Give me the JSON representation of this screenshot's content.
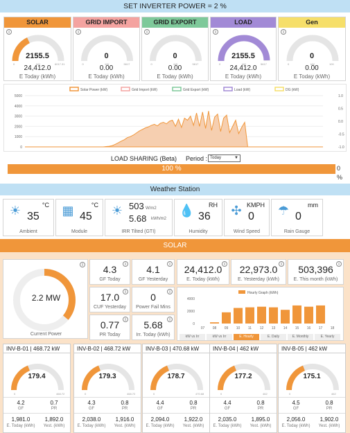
{
  "header": {
    "title": "SET INVERTER POWER = 2 %"
  },
  "gauges": [
    {
      "label": "SOLAR",
      "color": "#f0963a",
      "value": "2155.5",
      "unit": "kW",
      "min": "0",
      "max": "6017.31",
      "today": "24,412.0",
      "sub": "E Today (kWh)",
      "fill": 0.36
    },
    {
      "label": "GRID IMPORT",
      "color": "#f4a3a0",
      "value": "0",
      "unit": "kW",
      "min": "0",
      "max": "5617",
      "today": "0.00",
      "sub": "E Today (kWh)",
      "fill": 0
    },
    {
      "label": "GRID EXPORT",
      "color": "#7ec99a",
      "value": "0",
      "unit": "kW",
      "min": "0",
      "max": "5617",
      "today": "0.00",
      "sub": "E Today (kWh)",
      "fill": 0
    },
    {
      "label": "LOAD",
      "color": "#a28ad6",
      "value": "2155.5",
      "unit": "kW",
      "min": "0",
      "max": "5617",
      "today": "24,412.0",
      "sub": "E Today (kWh)",
      "fill": 0.99
    },
    {
      "label": "Gen",
      "color": "#f6df6a",
      "value": "0",
      "unit": "kW",
      "min": "0",
      "max": "100",
      "today": "0.00",
      "sub": "E Today (kWh)",
      "fill": 0
    }
  ],
  "chart_data": {
    "type": "area",
    "legend": [
      "Solar Power (kW)",
      "Grid Import (kW)",
      "Grid Export (kW)",
      "Load (kW)",
      "DG (kW)"
    ],
    "legend_colors": [
      "#f0963a",
      "#f4a3a0",
      "#7ec99a",
      "#a28ad6",
      "#f6df6a"
    ],
    "y_left_ticks": [
      "5000",
      "4000",
      "3000",
      "2000",
      "1000",
      "0"
    ],
    "y_right_ticks": [
      "1.0",
      "0.5",
      "0.0",
      "-0.5",
      "-1.0"
    ],
    "ylim": [
      0,
      5000
    ],
    "series": [
      {
        "name": "Solar Power (kW)",
        "values": [
          0,
          0,
          0,
          0,
          0,
          0,
          0,
          0,
          0,
          0,
          0,
          0,
          0,
          0,
          0,
          0,
          0,
          0,
          0,
          0,
          0,
          0,
          0,
          0,
          0,
          0,
          0,
          30,
          60,
          120,
          250,
          400,
          560,
          700,
          900,
          1000,
          1150,
          1350,
          1550,
          1700,
          1850,
          1950,
          2100,
          2200,
          2050,
          2300,
          2400,
          2250,
          2500,
          2600,
          2000,
          2700,
          1900,
          2800,
          2600,
          3000,
          2100,
          3300,
          2000,
          3400,
          1800,
          3500,
          1600,
          2900,
          3200,
          1500,
          2800,
          3100,
          1400,
          2000,
          2600,
          1300,
          1900,
          2400,
          0,
          0,
          0,
          0,
          0,
          0,
          0,
          0,
          0,
          0,
          0,
          0,
          0,
          0,
          0,
          0,
          0,
          0,
          0,
          0,
          0,
          0,
          0,
          0,
          0,
          0
        ]
      }
    ]
  },
  "load_sharing": {
    "title": "LOAD SHARING (Beta)",
    "period_label": "Period :",
    "period_value": "Today",
    "percent": "100 %",
    "right0": "0",
    "right_pct": "%"
  },
  "weather": {
    "title": "Weather Station",
    "items": [
      {
        "value": "35",
        "unit": "°C",
        "label": "Ambient",
        "icon": "sun-thermometer-icon"
      },
      {
        "value": "45",
        "unit": "°C",
        "label": "Module",
        "icon": "solar-panel-icon"
      },
      {
        "value": "503",
        "unit": "W/m2",
        "value2": "5.68",
        "unit2": "kWh/m2",
        "label": "IRR Tilted (GTI)",
        "icon": "sun-cloud-icon"
      },
      {
        "value": "36",
        "unit": "RH",
        "label": "Humidity",
        "icon": "humidity-drop-icon"
      },
      {
        "value": "0",
        "unit": "KMPH",
        "label": "Wind Speed",
        "icon": "wind-turbine-icon"
      },
      {
        "value": "0",
        "unit": "mm",
        "label": "Rain Gauge",
        "icon": "rain-gauge-icon"
      }
    ]
  },
  "solar": {
    "title": "SOLAR",
    "current_power": "2.2 MW",
    "current_label": "Current Power",
    "current_fill": 0.36,
    "kpis": [
      {
        "value": "4.3",
        "label": "GF Today"
      },
      {
        "value": "4.1",
        "label": "GF Yesterday"
      },
      {
        "value": "24,412.0",
        "label": "E. Today (kWh)"
      },
      {
        "value": "22,973.0",
        "label": "E. Yesterday (kWh)"
      },
      {
        "value": "503,396",
        "label": "E. This month (kWh)"
      },
      {
        "value": "17.0",
        "label": "CUF Yesterday"
      },
      {
        "value": "0",
        "label": "Power Fail Mins"
      },
      {
        "value": "0.77",
        "label": "PR Today"
      },
      {
        "value": "5.68",
        "label": "Irr. Today (kWh)"
      }
    ],
    "hourly": {
      "title": "Hourly Graph (kWh)",
      "y_ticks": [
        "4000",
        "2000",
        "0"
      ],
      "categories": [
        "07",
        "08",
        "09",
        "10",
        "11",
        "12",
        "13",
        "14",
        "15",
        "16",
        "17",
        "18"
      ],
      "values": [
        0,
        200,
        1800,
        2500,
        2600,
        2700,
        2600,
        2200,
        2900,
        2700,
        2900,
        0
      ],
      "tabs": [
        "kW vs Irr",
        "kW vs Irr",
        "E. Hourly",
        "E. Daily",
        "E. Monthly",
        "E. Yearly"
      ]
    }
  },
  "inverters": [
    {
      "title": "INV-B-01 | 468.72 kW",
      "value": "179.4",
      "max": "468.72",
      "gf": "4.2",
      "pr": "0.7",
      "e_today": "1,981.0",
      "e_yest": "1,892.0",
      "fill": 0.38
    },
    {
      "title": "INV-B-02 | 468.72 kW",
      "value": "179.3",
      "max": "468.72",
      "gf": "4.3",
      "pr": "0.8",
      "e_today": "2,038.0",
      "e_yest": "1,916.0",
      "fill": 0.38
    },
    {
      "title": "INV-B-03 | 470.68 kW",
      "value": "178.7",
      "max": "470.68",
      "gf": "4.4",
      "pr": "0.8",
      "e_today": "2,094.0",
      "e_yest": "1,922.0",
      "fill": 0.38
    },
    {
      "title": "INV-B-04 | 462 kW",
      "value": "177.2",
      "max": "462",
      "gf": "4.4",
      "pr": "0.8",
      "e_today": "2,035.0",
      "e_yest": "1,895.0",
      "fill": 0.38
    },
    {
      "title": "INV-B-05 | 462 kW",
      "value": "175.1",
      "max": "462",
      "gf": "4.5",
      "pr": "0.8",
      "e_today": "2,056.0",
      "e_yest": "1,902.0",
      "fill": 0.38
    }
  ],
  "inv_labels": {
    "gf": "GF",
    "pr": "PR",
    "e_today": "E. Today (kWh)",
    "e_yest": "Yest. (kWh)",
    "zero": "0"
  }
}
